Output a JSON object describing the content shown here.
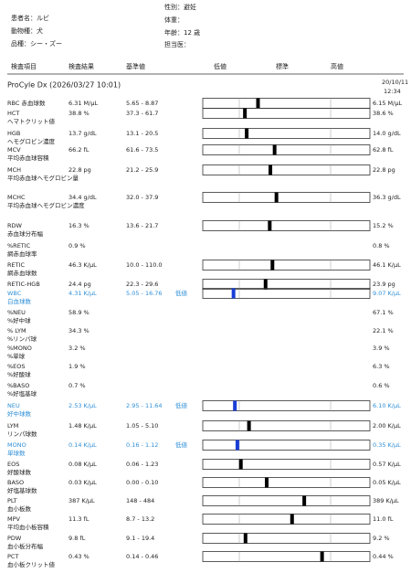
{
  "header": {
    "patient": "患者名：ルビ",
    "species": "動物種：犬",
    "breed": "品種：シー・ズー",
    "sex": "性別：避妊",
    "weight": "体重：",
    "age": "年齢：12 歳",
    "doctor": "担当医："
  },
  "columns": [
    "検査項目",
    "検査結果",
    "基準値",
    "低値",
    "標準",
    "高値"
  ],
  "section": {
    "title": "ProCyle Dx (2026/03/27 10:01)",
    "date": "20/10/11",
    "time": "12:34"
  },
  "highlight_color": "#2f8fd8",
  "rows": [
    {
      "name": "RBC 赤血球数",
      "result": "6.31 M/µL",
      "range": "5.65 - 8.87",
      "previous": "6.15 M/µL"
    },
    {
      "name": "HCT",
      "sub": "ヘマトクリット値",
      "result": "38.8 %",
      "range": "37.3 - 61.7",
      "previous": "38.6 %"
    },
    {
      "name": "HGB",
      "sub": "ヘモグロビン濃度",
      "result": "13.7 g/dL",
      "range": "13.1 - 20.5",
      "previous": "14.0 g/dL"
    },
    {
      "name": "MCV",
      "sub": "平均赤血球容積",
      "result": "66.2 fL",
      "range": "61.6 - 73.5",
      "previous": "62.8 fL"
    },
    {
      "name": "MCH",
      "sub": "平均赤血球ヘモグロビン量",
      "result": "22.8 pg",
      "range": "21.2 - 25.9",
      "previous": "22.8 pg"
    },
    {
      "name": "MCHC",
      "sub": "平均赤血球ヘモグロビン濃度",
      "result": "34.4 g/dL",
      "range": "32.0 - 37.9",
      "previous": "36.3 g/dL"
    },
    {
      "name": "RDW",
      "sub": "赤血球分布幅",
      "result": "16.3 %",
      "range": "13.6 - 21.7",
      "previous": "15.2 %"
    },
    {
      "name": "%RETIC",
      "sub": "網赤血球率",
      "result": "0.9 %",
      "previous": "0.8 %"
    },
    {
      "name": "RETIC",
      "sub": "網赤血球数",
      "result": "46.3 K/µL",
      "range": "10.0 - 110.0",
      "previous": "46.1 K/µL"
    },
    {
      "name": "RETIC-HGB",
      "result": "24.4 pg",
      "range": "22.3 - 29.6",
      "previous": "23.9 pg"
    },
    {
      "name": "WBC",
      "sub": "白血球数",
      "result": "4.31 K/µL",
      "range": "5.05 - 16.76",
      "flag": "低値",
      "previous": "9.07 K/µL"
    },
    {
      "name": "%NEU",
      "sub": "%好中球",
      "result": "58.9 %",
      "previous": "67.1 %"
    },
    {
      "name": "% LYM",
      "sub": "%リンパ球",
      "result": "34.3 %",
      "previous": "22.1 %"
    },
    {
      "name": "%MONO",
      "sub": "%単球",
      "result": "3.2 %",
      "previous": "3.9 %"
    },
    {
      "name": "%EOS",
      "sub": "%好酸球",
      "result": "1.9 %",
      "previous": "6.3 %"
    },
    {
      "name": "%BASO",
      "sub": "%好塩基球",
      "result": "0.7 %",
      "previous": "0.6 %"
    },
    {
      "name": "NEU",
      "sub": "好中球数",
      "result": "2.53 K/µL",
      "range": "2.95 - 11.64",
      "flag": "低値",
      "previous": "6.10 K/µL"
    },
    {
      "name": "LYM",
      "sub": "リンパ球数",
      "result": "1.48 K/µL",
      "range": "1.05 - 5.10",
      "previous": "2.00 K/µL"
    },
    {
      "name": "MONO",
      "sub": "単球数",
      "result": "0.14 K/µL",
      "range": "0.16 - 1.12",
      "flag": "低値",
      "previous": "0.35 K/µL"
    },
    {
      "name": "EOS",
      "sub": "好酸球数",
      "result": "0.08 K/µL",
      "range": "0.06 - 1.23",
      "previous": "0.57 K/µL"
    },
    {
      "name": "BASO",
      "sub": "好塩基球数",
      "result": "0.03 K/µL",
      "range": "0.00 - 0.10",
      "previous": "0.05 K/µL"
    },
    {
      "name": "PLT",
      "sub": "血小板数",
      "result": "387 K/µL",
      "range": "148 - 484",
      "previous": "389 K/µL"
    },
    {
      "name": "MPV",
      "sub": "平均血小板容積",
      "result": "11.3 fL",
      "range": "8.7 - 13.2",
      "previous": "11.0 fL"
    },
    {
      "name": "PDW",
      "sub": "血小板分布幅",
      "result": "9.8 fL",
      "range": "9.1 - 19.4",
      "previous": "9.2 %"
    },
    {
      "name": "PCT",
      "sub": "血小板クリット値",
      "result": "0.43 %",
      "range": "0.14 - 0.46",
      "previous": "0.44 %"
    }
  ]
}
